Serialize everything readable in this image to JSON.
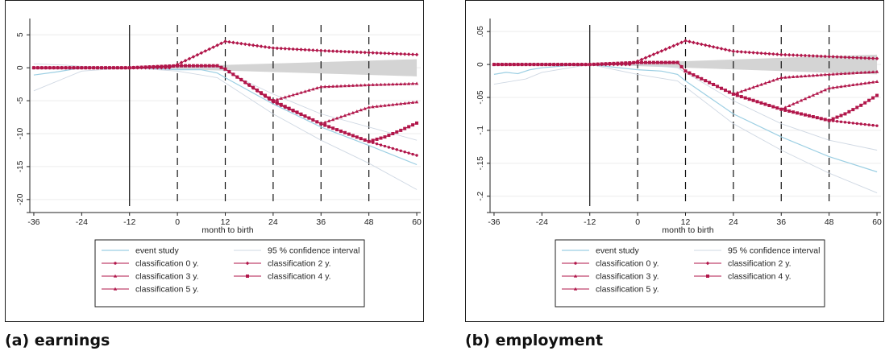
{
  "colors": {
    "marker_red": "#b1164a",
    "event_blue": "#9ccfe3",
    "ci_gray": "#d4d4d4",
    "ci_line": "#cfd8e3",
    "axis": "#222222"
  },
  "panels": [
    {
      "caption": "(a) earnings"
    },
    {
      "caption": "(b) employment"
    }
  ],
  "chart_data": [
    {
      "type": "line",
      "panel_caption": "(a) earnings",
      "xlabel": "month to birth",
      "ylabel": "",
      "xlim": [
        -37,
        61
      ],
      "ylim": [
        -21,
        6.5
      ],
      "xticks": [
        -36,
        -24,
        -12,
        0,
        12,
        24,
        36,
        48,
        60
      ],
      "yticks": [
        5,
        0,
        -5,
        -10,
        -15,
        -20
      ],
      "ytick_labels": [
        "5",
        "0",
        "-5",
        "-10",
        "-15",
        "-20"
      ],
      "vlines_solid": [
        -12
      ],
      "vlines_dashed": [
        0,
        12,
        24,
        36,
        48
      ],
      "ci_band": {
        "x_start": -12,
        "x_end": 60,
        "upper_start": 0,
        "upper_end": 1.3,
        "lower_start": 0,
        "lower_end": -1.3
      },
      "legend": [
        "event study",
        "95 % confidence interval",
        "classification 0 y.",
        "classification 2 y.",
        "classification 3 y.",
        "classification 4 y.",
        "classification 5 y."
      ],
      "series": [
        {
          "name": "event study",
          "style": "event",
          "points": [
            [
              -36,
              -1.1
            ],
            [
              -30,
              -0.6
            ],
            [
              -24,
              0
            ],
            [
              -12,
              0
            ],
            [
              0,
              -0.3
            ],
            [
              6,
              -0.3
            ],
            [
              10,
              -0.8
            ],
            [
              12,
              -1.5
            ],
            [
              24,
              -5.5
            ],
            [
              36,
              -9
            ],
            [
              48,
              -11.8
            ],
            [
              60,
              -14.7
            ]
          ]
        },
        {
          "name": "95 % confidence interval",
          "style": "ci",
          "points": [
            [
              -36,
              -3.5
            ],
            [
              -28,
              -1.5
            ],
            [
              -24,
              -0.5
            ],
            [
              -12,
              0
            ],
            [
              0,
              -0.5
            ],
            [
              10,
              -1.5
            ],
            [
              24,
              -7
            ],
            [
              36,
              -11
            ],
            [
              48,
              -14.5
            ],
            [
              60,
              -18.5
            ]
          ]
        },
        {
          "name": "95 % confidence interval",
          "style": "ci",
          "points": [
            [
              -36,
              0.6
            ],
            [
              -28,
              0.4
            ],
            [
              -24,
              0.2
            ],
            [
              -12,
              0
            ],
            [
              0,
              0
            ],
            [
              10,
              0
            ],
            [
              24,
              -4
            ],
            [
              36,
              -7
            ],
            [
              48,
              -9
            ],
            [
              60,
              -11
            ]
          ]
        },
        {
          "name": "classification 0 y.",
          "style": "circle",
          "points": [
            [
              -36,
              0
            ],
            [
              -12,
              0
            ],
            [
              -2,
              0.3
            ],
            [
              0,
              0.3
            ],
            [
              10,
              0.3
            ],
            [
              12,
              -0.2
            ],
            [
              24,
              -5.2
            ],
            [
              36,
              -8.5
            ],
            [
              48,
              -11.2
            ],
            [
              60,
              -13.3
            ]
          ]
        },
        {
          "name": "classification 2 y.",
          "style": "diamond",
          "points": [
            [
              -36,
              0
            ],
            [
              -12,
              0
            ],
            [
              -2,
              0
            ],
            [
              0,
              0.5
            ],
            [
              12,
              4.0
            ],
            [
              24,
              3.0
            ],
            [
              36,
              2.6
            ],
            [
              48,
              2.3
            ],
            [
              60,
              2.0
            ]
          ]
        },
        {
          "name": "classification 3 y.",
          "style": "triangle",
          "points": [
            [
              -36,
              0
            ],
            [
              -12,
              0
            ],
            [
              0,
              0.3
            ],
            [
              10,
              0.3
            ],
            [
              12,
              -0.2
            ],
            [
              24,
              -5
            ],
            [
              36,
              -2.9
            ],
            [
              48,
              -2.6
            ],
            [
              60,
              -2.4
            ]
          ]
        },
        {
          "name": "classification 4 y.",
          "style": "square",
          "points": [
            [
              -36,
              0
            ],
            [
              -12,
              0
            ],
            [
              0,
              0.3
            ],
            [
              10,
              0.3
            ],
            [
              12,
              -0.2
            ],
            [
              24,
              -5
            ],
            [
              36,
              -8.5
            ],
            [
              48,
              -11.2
            ],
            [
              52,
              -10.5
            ],
            [
              56,
              -9.5
            ],
            [
              60,
              -8.4
            ]
          ]
        },
        {
          "name": "classification 5 y.",
          "style": "triangle",
          "points": [
            [
              -36,
              0
            ],
            [
              -12,
              0
            ],
            [
              0,
              0.3
            ],
            [
              10,
              0.3
            ],
            [
              12,
              -0.2
            ],
            [
              24,
              -5
            ],
            [
              36,
              -8.5
            ],
            [
              48,
              -6.0
            ],
            [
              60,
              -5.2
            ]
          ]
        }
      ]
    },
    {
      "type": "line",
      "panel_caption": "(b) employment",
      "xlabel": "month to birth",
      "ylabel": "",
      "xlim": [
        -37,
        61
      ],
      "ylim": [
        -0.215,
        0.06
      ],
      "xticks": [
        -36,
        -24,
        -12,
        0,
        12,
        24,
        36,
        48,
        60
      ],
      "yticks": [
        0.05,
        0,
        -0.05,
        -0.1,
        -0.15,
        -0.2
      ],
      "ytick_labels": [
        ".05",
        "0",
        "-.05",
        "-.1",
        "-.15",
        "-.2"
      ],
      "vlines_solid": [
        -12
      ],
      "vlines_dashed": [
        0,
        12,
        24,
        36,
        48
      ],
      "ci_band": {
        "x_start": -12,
        "x_end": 60,
        "upper_start": 0,
        "upper_end": 0.015,
        "lower_start": 0,
        "lower_end": -0.015
      },
      "legend": [
        "event study",
        "95 % confidence interval",
        "classification 0 y.",
        "classification 2 y.",
        "classification 3 y.",
        "classification 4 y.",
        "classification 5 y."
      ],
      "series": [
        {
          "name": "event study",
          "style": "event",
          "points": [
            [
              -36,
              -0.015
            ],
            [
              -33,
              -0.012
            ],
            [
              -30,
              -0.014
            ],
            [
              -27,
              -0.008
            ],
            [
              -24,
              -0.005
            ],
            [
              -18,
              -0.002
            ],
            [
              -12,
              0
            ],
            [
              -6,
              -0.004
            ],
            [
              0,
              -0.008
            ],
            [
              6,
              -0.01
            ],
            [
              10,
              -0.015
            ],
            [
              12,
              -0.025
            ],
            [
              18,
              -0.05
            ],
            [
              24,
              -0.075
            ],
            [
              36,
              -0.11
            ],
            [
              48,
              -0.14
            ],
            [
              60,
              -0.163
            ]
          ]
        },
        {
          "name": "95 % confidence interval",
          "style": "ci",
          "points": [
            [
              -36,
              -0.03
            ],
            [
              -28,
              -0.022
            ],
            [
              -24,
              -0.012
            ],
            [
              -12,
              0
            ],
            [
              0,
              -0.015
            ],
            [
              10,
              -0.025
            ],
            [
              24,
              -0.09
            ],
            [
              36,
              -0.13
            ],
            [
              48,
              -0.165
            ],
            [
              60,
              -0.195
            ]
          ]
        },
        {
          "name": "95 % confidence interval",
          "style": "ci",
          "points": [
            [
              -36,
              0.002
            ],
            [
              -28,
              0.002
            ],
            [
              -24,
              0.002
            ],
            [
              -12,
              0
            ],
            [
              0,
              0
            ],
            [
              10,
              -0.005
            ],
            [
              24,
              -0.055
            ],
            [
              36,
              -0.09
            ],
            [
              48,
              -0.115
            ],
            [
              60,
              -0.13
            ]
          ]
        },
        {
          "name": "classification 0 y.",
          "style": "circle",
          "points": [
            [
              -36,
              0
            ],
            [
              -12,
              0
            ],
            [
              0,
              0.003
            ],
            [
              10,
              0.003
            ],
            [
              12,
              -0.01
            ],
            [
              24,
              -0.045
            ],
            [
              36,
              -0.068
            ],
            [
              48,
              -0.085
            ],
            [
              60,
              -0.093
            ]
          ]
        },
        {
          "name": "classification 2 y.",
          "style": "diamond",
          "points": [
            [
              -36,
              0
            ],
            [
              -12,
              0
            ],
            [
              -2,
              0
            ],
            [
              0,
              0.005
            ],
            [
              12,
              0.036
            ],
            [
              24,
              0.02
            ],
            [
              36,
              0.015
            ],
            [
              48,
              0.012
            ],
            [
              60,
              0.009
            ]
          ]
        },
        {
          "name": "classification 3 y.",
          "style": "triangle",
          "points": [
            [
              -36,
              0
            ],
            [
              -12,
              0
            ],
            [
              0,
              0.003
            ],
            [
              10,
              0.003
            ],
            [
              12,
              -0.01
            ],
            [
              24,
              -0.045
            ],
            [
              36,
              -0.02
            ],
            [
              48,
              -0.015
            ],
            [
              60,
              -0.011
            ]
          ]
        },
        {
          "name": "classification 4 y.",
          "style": "square",
          "points": [
            [
              -36,
              0
            ],
            [
              -12,
              0
            ],
            [
              0,
              0.003
            ],
            [
              10,
              0.003
            ],
            [
              12,
              -0.01
            ],
            [
              24,
              -0.045
            ],
            [
              36,
              -0.068
            ],
            [
              48,
              -0.085
            ],
            [
              52,
              -0.075
            ],
            [
              56,
              -0.062
            ],
            [
              60,
              -0.047
            ]
          ]
        },
        {
          "name": "classification 5 y.",
          "style": "triangle",
          "points": [
            [
              -36,
              0
            ],
            [
              -12,
              0
            ],
            [
              0,
              0.003
            ],
            [
              10,
              0.003
            ],
            [
              12,
              -0.01
            ],
            [
              24,
              -0.045
            ],
            [
              36,
              -0.068
            ],
            [
              48,
              -0.036
            ],
            [
              60,
              -0.026
            ]
          ]
        }
      ]
    }
  ]
}
